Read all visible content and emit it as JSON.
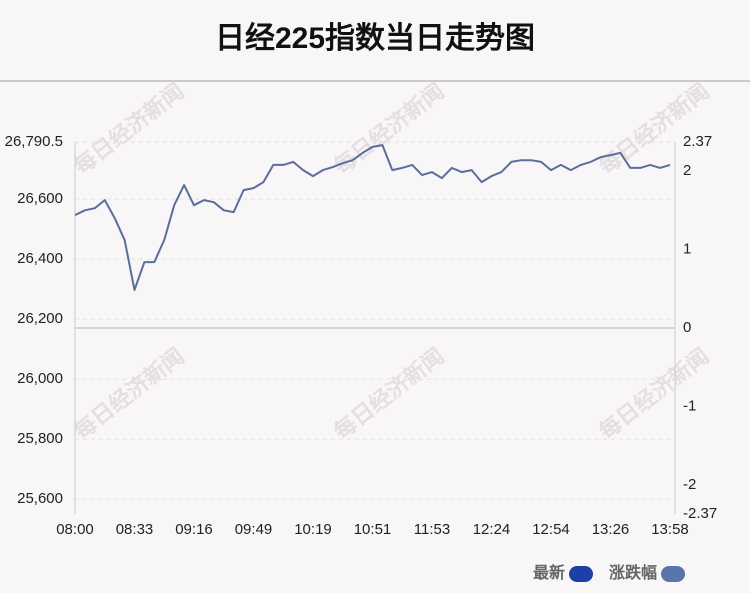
{
  "chart_data": {
    "type": "line",
    "title": "日经225指数当日走势图",
    "watermark": "每日经济新闻",
    "categories": [
      "08:00",
      null,
      null,
      null,
      null,
      null,
      "08:33",
      null,
      null,
      null,
      null,
      null,
      "09:16",
      null,
      null,
      null,
      null,
      null,
      "09:49",
      null,
      null,
      null,
      null,
      null,
      "10:19",
      null,
      null,
      null,
      null,
      null,
      "10:51",
      null,
      null,
      null,
      null,
      null,
      "11:53",
      null,
      null,
      null,
      null,
      null,
      "12:24",
      null,
      null,
      null,
      null,
      null,
      "12:54",
      null,
      null,
      null,
      null,
      null,
      "13:26",
      null,
      null,
      null,
      null,
      null,
      "13:58"
    ],
    "series": [
      {
        "color": "#5b6e9b",
        "values": [
          26547,
          26563,
          26570,
          26597,
          26537,
          26464,
          26297,
          26390,
          26390,
          26464,
          26580,
          26647,
          26580,
          26597,
          26590,
          26563,
          26557,
          26630,
          26637,
          26657,
          26714,
          26714,
          26724,
          26697,
          26677,
          26697,
          26707,
          26720,
          26730,
          26754,
          26774,
          26780,
          26697,
          26704,
          26714,
          26680,
          26690,
          26670,
          26704,
          26690,
          26697,
          26657,
          26677,
          26690,
          26724,
          26730,
          26730,
          26724,
          26697,
          26714,
          26697,
          26714,
          26724,
          26740,
          26747,
          26754,
          26704,
          26704,
          26714,
          26704,
          26714
        ]
      }
    ],
    "ylim": [
      25550.5,
      26790.5
    ],
    "yticks": [
      {
        "value": 25600,
        "label": "25,600"
      },
      {
        "value": 25800,
        "label": "25,800"
      },
      {
        "value": 26000,
        "label": "26,000"
      },
      {
        "value": 26200,
        "label": "26,200"
      },
      {
        "value": 26400,
        "label": "26,400"
      },
      {
        "value": 26600,
        "label": "26,600"
      },
      {
        "value": 26790.5,
        "label": "26,790.5"
      }
    ],
    "y2lim": [
      -2.37,
      2.37
    ],
    "y2ticks": [
      -2.37,
      -2,
      -1,
      0,
      1,
      2,
      2.37
    ],
    "grid": true,
    "legend": [
      {
        "name": "最新",
        "color": "#1f3fa8"
      },
      {
        "name": "涨跌幅",
        "color": "#5a75a9"
      }
    ],
    "legend_position": "bottom-right"
  }
}
